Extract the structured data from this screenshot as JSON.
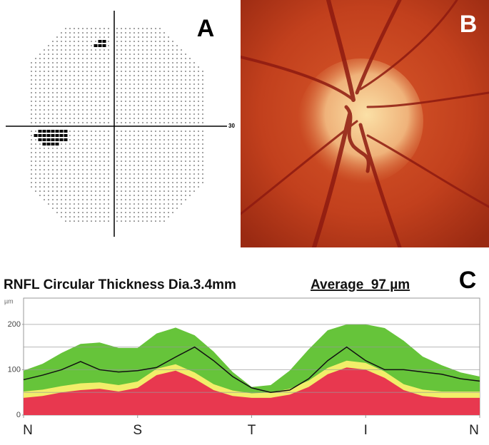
{
  "panels": {
    "a": {
      "label": "A",
      "axis_label": "30"
    },
    "b": {
      "label": "B"
    },
    "c": {
      "label": "C"
    }
  },
  "chart_data": {
    "type": "area-band",
    "title": "RNFL Circular Thickness Dia.3.4mm",
    "annotation": "Average  97 µm",
    "y_unit": "µm",
    "x": [
      0,
      15,
      30,
      45,
      60,
      75,
      90,
      105,
      120,
      135,
      150,
      165,
      180,
      195,
      210,
      225,
      240,
      255,
      270,
      285,
      300,
      315,
      330,
      345,
      360
    ],
    "xlim": [
      0,
      360
    ],
    "xticks": [
      {
        "value": 0,
        "label": "N"
      },
      {
        "value": 90,
        "label": "S"
      },
      {
        "value": 180,
        "label": "T"
      },
      {
        "value": 270,
        "label": "I"
      },
      {
        "value": 360,
        "label": "N"
      }
    ],
    "ylim": [
      0,
      258
    ],
    "yticks": [
      0,
      100,
      200
    ],
    "grid_lines": [
      50,
      100,
      150,
      200
    ],
    "grid": true,
    "series": [
      {
        "color": "#66c43a",
        "values": [
          98,
          113,
          137,
          157,
          160,
          148,
          148,
          180,
          193,
          176,
          140,
          95,
          62,
          66,
          98,
          145,
          187,
          200,
          200,
          192,
          164,
          129,
          110,
          94,
          85
        ]
      },
      {
        "color": "#f2ee6a",
        "values": [
          52,
          56,
          64,
          70,
          72,
          66,
          74,
          102,
          112,
          94,
          68,
          54,
          48,
          50,
          58,
          76,
          104,
          120,
          115,
          96,
          68,
          56,
          52,
          52,
          52
        ]
      },
      {
        "color": "#e8384f",
        "values": [
          38,
          42,
          50,
          55,
          58,
          52,
          60,
          88,
          98,
          80,
          55,
          42,
          38,
          38,
          45,
          62,
          90,
          105,
          100,
          82,
          55,
          42,
          38,
          38,
          38
        ]
      },
      {
        "color": "#111111",
        "kind": "line",
        "values": [
          78,
          88,
          100,
          118,
          100,
          95,
          98,
          105,
          128,
          150,
          120,
          85,
          60,
          50,
          55,
          80,
          120,
          150,
          120,
          100,
          100,
          95,
          90,
          80,
          75
        ]
      }
    ]
  }
}
